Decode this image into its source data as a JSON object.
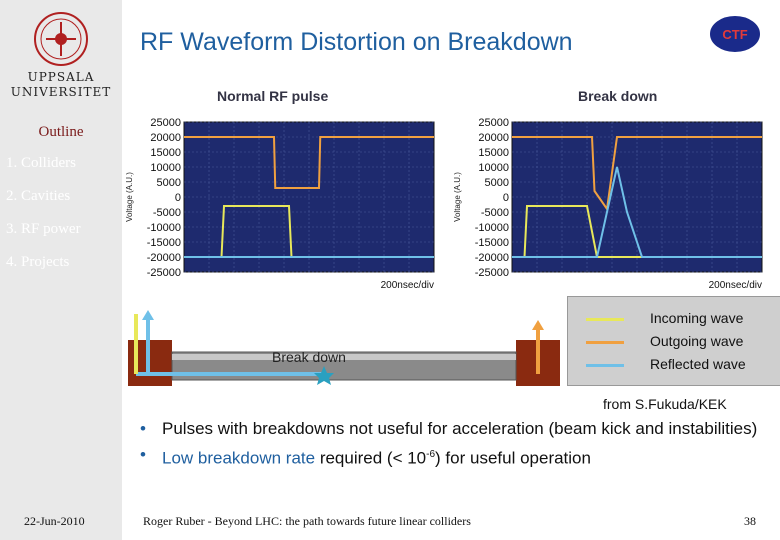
{
  "sidebar": {
    "university_line1": "UPPSALA",
    "university_line2": "UNIVERSITET",
    "outline_title": "Outline",
    "items": [
      {
        "label": "1. Colliders"
      },
      {
        "label": "2. Cavities"
      },
      {
        "label": "3. RF power"
      },
      {
        "label": "4. Projects"
      }
    ]
  },
  "slide": {
    "title": "RF Waveform Distortion on Breakdown",
    "logo_text": "CTF"
  },
  "chart_data": [
    {
      "type": "line",
      "title": "Normal RF pulse",
      "ylabel": "Voltage (A.U.)",
      "xlabel": "200nsec/div",
      "yticks": [
        "25000",
        "20000",
        "15000",
        "10000",
        "5000",
        "0",
        "-5000",
        "-10000",
        "-15000",
        "-20000",
        "-25000"
      ],
      "ylim": [
        -25000,
        25000
      ],
      "xlim": [
        0,
        1000
      ],
      "grid": true,
      "series": [
        {
          "name": "Incoming wave",
          "color": "#e8e85a",
          "x": [
            0,
            150,
            160,
            420,
            430,
            1000
          ],
          "y": [
            -20000,
            -20000,
            -3000,
            -3000,
            -20000,
            -20000
          ]
        },
        {
          "name": "Outgoing wave",
          "color": "#f0a040",
          "x": [
            0,
            360,
            365,
            540,
            545,
            1000
          ],
          "y": [
            20000,
            20000,
            3000,
            3000,
            20000,
            20000
          ]
        },
        {
          "name": "Reflected wave",
          "color": "#6fc0e8",
          "x": [
            0,
            1000
          ],
          "y": [
            -20000,
            -20000
          ]
        }
      ]
    },
    {
      "type": "line",
      "title": "Break down",
      "ylabel": "Voltage (A.U.)",
      "xlabel": "200nsec/div",
      "yticks": [
        "25000",
        "20000",
        "15000",
        "10000",
        "5000",
        "0",
        "-5000",
        "-10000",
        "-15000",
        "-20000",
        "-25000"
      ],
      "ylim": [
        -25000,
        25000
      ],
      "xlim": [
        0,
        1000
      ],
      "grid": true,
      "series": [
        {
          "name": "Incoming wave",
          "color": "#e8e85a",
          "x": [
            0,
            50,
            60,
            300,
            340,
            1000
          ],
          "y": [
            -20000,
            -20000,
            -3000,
            -3000,
            -20000,
            -20000
          ]
        },
        {
          "name": "Outgoing wave",
          "color": "#f0a040",
          "x": [
            0,
            320,
            330,
            380,
            420,
            1000
          ],
          "y": [
            20000,
            20000,
            2000,
            -4000,
            20000,
            20000
          ]
        },
        {
          "name": "Reflected wave",
          "color": "#6fc0e8",
          "x": [
            0,
            340,
            420,
            460,
            520,
            1000
          ],
          "y": [
            -20000,
            -20000,
            10000,
            -5000,
            -20000,
            -20000
          ]
        }
      ]
    }
  ],
  "diagram": {
    "breakdown_label": "Break down"
  },
  "legend": [
    {
      "label": "Incoming wave",
      "color": "#e8e85a"
    },
    {
      "label": "Outgoing wave",
      "color": "#f0a040"
    },
    {
      "label": "Reflected wave",
      "color": "#6fc0e8"
    }
  ],
  "credit": "from S.Fukuda/KEK",
  "bullets": {
    "b1": "Pulses with breakdowns not useful for acceleration (beam kick and instabilities)",
    "b2_highlight": "Low breakdown rate",
    "b2_rest_a": " required (< 10",
    "b2_sup": "-6",
    "b2_rest_b": ") for useful operation"
  },
  "footer": {
    "date": "22-Jun-2010",
    "text": "Roger Ruber - Beyond LHC: the path towards future linear colliders",
    "page": "38"
  }
}
